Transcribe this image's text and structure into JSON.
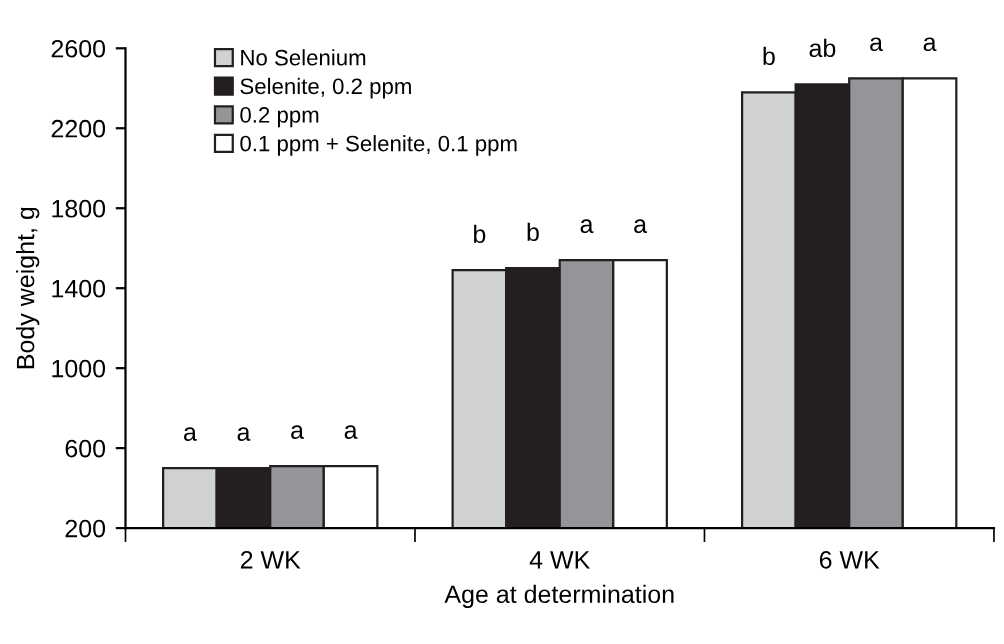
{
  "chart_data": {
    "type": "bar",
    "xlabel": "Age at determination",
    "ylabel": "Body weight, g",
    "categories": [
      "2 WK",
      "4 WK",
      "6 WK"
    ],
    "series": [
      {
        "name": "No Selenium",
        "color": "#d0d1d3",
        "values": [
          500,
          1490,
          2380
        ]
      },
      {
        "name": "Selenite, 0.2 ppm",
        "color": "#231f20",
        "values": [
          500,
          1500,
          2420
        ]
      },
      {
        "name": "0.2 ppm",
        "color": "#939598",
        "values": [
          510,
          1540,
          2450
        ]
      },
      {
        "name": "0.1 ppm + Selenite, 0.1 ppm",
        "color": "#ffffff",
        "values": [
          510,
          1540,
          2450
        ]
      }
    ],
    "ylim": [
      200,
      2600
    ],
    "yticks": [
      200,
      600,
      1000,
      1400,
      1800,
      2200,
      2600
    ],
    "grid": false,
    "legend": "top left",
    "annotations": [
      "a",
      "a",
      "a",
      "a",
      "b",
      "b",
      "a",
      "a",
      "b",
      "ab",
      "a",
      "a"
    ]
  }
}
